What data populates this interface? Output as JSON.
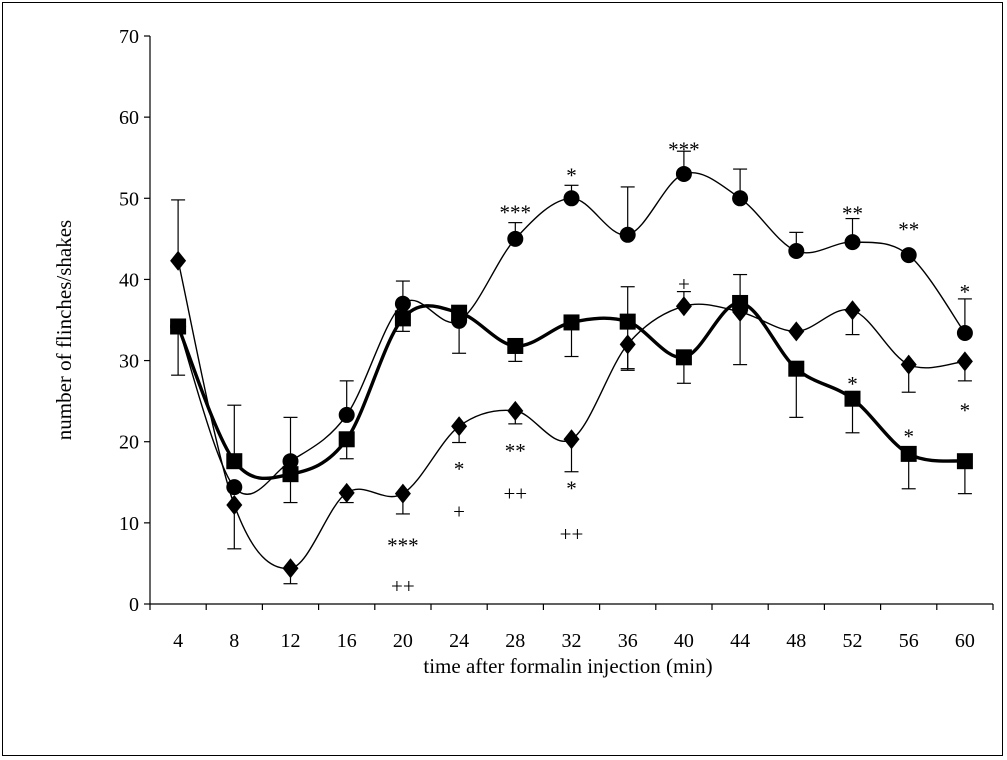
{
  "chart_data": {
    "type": "line",
    "xlabel": "time after formalin injection (min)",
    "ylabel": "number of flinches/shakes",
    "x": [
      4,
      8,
      12,
      16,
      20,
      24,
      28,
      32,
      36,
      40,
      44,
      48,
      52,
      56,
      60
    ],
    "x_tick_labels": [
      "4",
      "8",
      "12",
      "16",
      "20",
      "24",
      "28",
      "32",
      "36",
      "40",
      "44",
      "48",
      "52",
      "56",
      "60"
    ],
    "y_tick_labels": [
      "0",
      "10",
      "20",
      "30",
      "40",
      "50",
      "60",
      "70"
    ],
    "ylim": [
      0,
      70
    ],
    "grid": false,
    "legend": "none",
    "series": [
      {
        "marker": "circle",
        "line": "thin",
        "values": [
          34.2,
          14.4,
          17.6,
          23.3,
          37.0,
          34.9,
          45.0,
          50.0,
          45.5,
          53.0,
          50.0,
          43.5,
          44.6,
          43.0,
          33.4
        ],
        "error_up": [
          0,
          0,
          5.4,
          4.2,
          2.8,
          0,
          2.0,
          1.6,
          5.9,
          2.8,
          3.6,
          2.3,
          2.9,
          0,
          4.2
        ]
      },
      {
        "marker": "square",
        "line": "thick",
        "values": [
          34.2,
          17.6,
          16.0,
          20.3,
          35.2,
          35.9,
          31.8,
          34.7,
          34.8,
          30.4,
          37.1,
          29.0,
          25.3,
          18.5,
          17.6
        ],
        "error_up": [
          0,
          6.9,
          0,
          0,
          0,
          0,
          0,
          0,
          4.3,
          0,
          3.5,
          0,
          0,
          0,
          0
        ],
        "error_down": [
          6.0,
          0,
          3.5,
          2.4,
          1.6,
          5.0,
          1.9,
          4.2,
          6.0,
          3.2,
          7.6,
          6.0,
          4.2,
          4.3,
          4.0
        ]
      },
      {
        "marker": "diamond",
        "line": "thin",
        "values": [
          42.3,
          12.2,
          4.4,
          13.7,
          13.6,
          21.9,
          23.8,
          20.3,
          32.0,
          36.7,
          36.0,
          33.6,
          36.2,
          29.5,
          29.9
        ],
        "error_up": [
          7.5,
          0,
          0,
          0,
          0,
          0,
          0,
          0,
          0,
          1.8,
          0,
          0,
          0,
          0,
          0
        ],
        "error_down": [
          0,
          5.4,
          1.9,
          1.2,
          2.5,
          2.0,
          1.6,
          4.0,
          3.0,
          0,
          0,
          0,
          3.0,
          3.4,
          2.4
        ]
      }
    ],
    "annotations": [
      {
        "text": "*",
        "x": 32,
        "y": 53.2
      },
      {
        "text": "***",
        "x": 28,
        "y": 48.6
      },
      {
        "text": "***",
        "x": 40,
        "y": 56.4
      },
      {
        "text": "**",
        "x": 52,
        "y": 48.5
      },
      {
        "text": "**",
        "x": 56,
        "y": 46.5
      },
      {
        "text": "*",
        "x": 60,
        "y": 38.8
      },
      {
        "text": "+",
        "x": 40,
        "y": 39.8
      },
      {
        "text": "*",
        "x": 52,
        "y": 27.5
      },
      {
        "text": "*",
        "x": 56,
        "y": 21.0
      },
      {
        "text": "*",
        "x": 60,
        "y": 24.2
      },
      {
        "text": "*",
        "x": 24,
        "y": 17.0
      },
      {
        "text": "+",
        "x": 24,
        "y": 11.8
      },
      {
        "text": "**",
        "x": 28,
        "y": 19.2
      },
      {
        "text": "++",
        "x": 28,
        "y": 14.0
      },
      {
        "text": "*",
        "x": 32,
        "y": 14.6
      },
      {
        "text": "++",
        "x": 32,
        "y": 9.0
      },
      {
        "text": "***",
        "x": 20,
        "y": 7.6
      },
      {
        "text": "++",
        "x": 20,
        "y": 2.6
      }
    ]
  }
}
